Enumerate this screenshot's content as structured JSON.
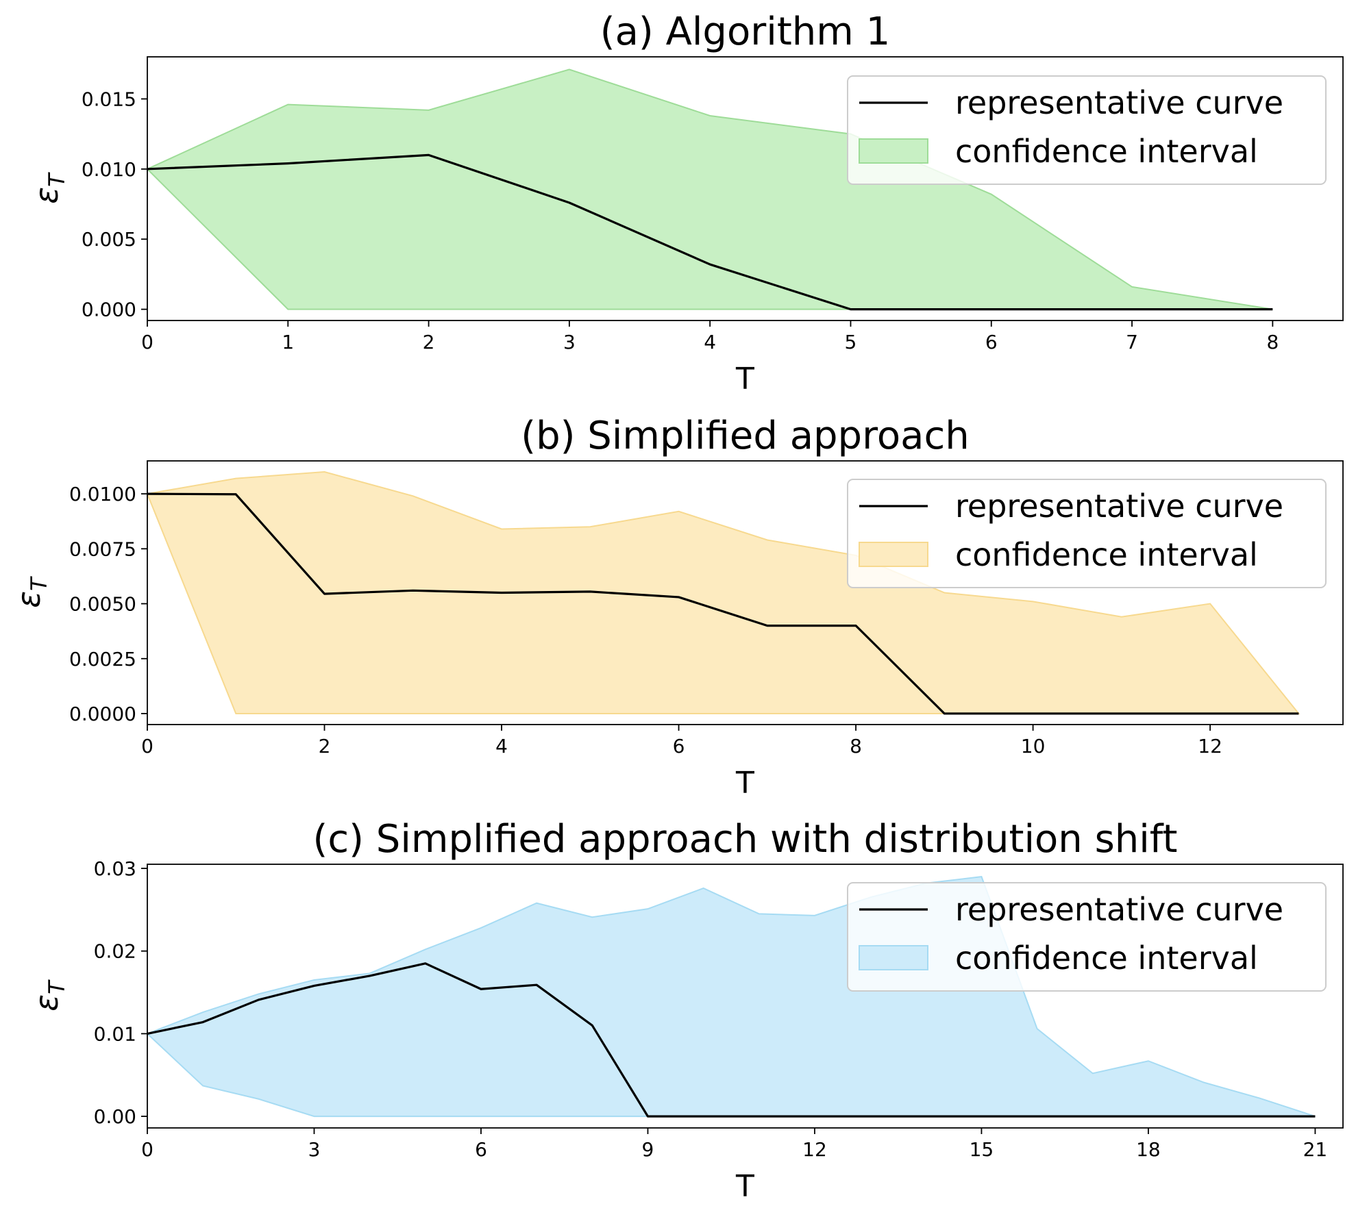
{
  "chart_data": [
    {
      "type": "area",
      "title": "(a) Algorithm 1",
      "xlabel": "T",
      "ylabel": "ε",
      "ylabel_sub": "T",
      "xlim": [
        0,
        8.5
      ],
      "ylim": [
        -0.0008,
        0.018
      ],
      "xticks": [
        0,
        1,
        2,
        3,
        4,
        5,
        6,
        7,
        8
      ],
      "xtick_labels": [
        "0",
        "1",
        "2",
        "3",
        "4",
        "5",
        "6",
        "7",
        "8"
      ],
      "yticks": [
        0,
        0.005,
        0.01,
        0.015
      ],
      "ytick_labels": [
        "0.000",
        "0.005",
        "0.010",
        "0.015"
      ],
      "fill_color": "#c8f0c4",
      "fill_edge_color": "#9edc98",
      "legend": {
        "line_label": "representative curve",
        "fill_label": "confidence interval",
        "position": "upper right"
      },
      "x": [
        0,
        1,
        2,
        3,
        4,
        5,
        6,
        7,
        8
      ],
      "series": [
        {
          "name": "representative curve",
          "values": [
            0.01,
            0.0104,
            0.011,
            0.0076,
            0.0032,
            0,
            0,
            0,
            0
          ]
        }
      ],
      "band": {
        "name": "confidence interval",
        "upper": [
          0.01,
          0.0146,
          0.0142,
          0.0171,
          0.0138,
          0.0125,
          0.0082,
          0.0016,
          0
        ],
        "lower": [
          0.01,
          0,
          0,
          0,
          0,
          0,
          0,
          0,
          0
        ]
      }
    },
    {
      "type": "area",
      "title": "(b) Simplified approach",
      "xlabel": "T",
      "ylabel": "ε",
      "ylabel_sub": "T",
      "xlim": [
        0,
        13.5
      ],
      "ylim": [
        -0.0005,
        0.0115
      ],
      "xticks": [
        0,
        2,
        4,
        6,
        8,
        10,
        12
      ],
      "xtick_labels": [
        "0",
        "2",
        "4",
        "6",
        "8",
        "10",
        "12"
      ],
      "yticks": [
        0,
        0.0025,
        0.005,
        0.0075,
        0.01
      ],
      "ytick_labels": [
        "0.0000",
        "0.0025",
        "0.0050",
        "0.0075",
        "0.0100"
      ],
      "fill_color": "#fdebc0",
      "fill_edge_color": "#f7d98f",
      "legend": {
        "line_label": "representative curve",
        "fill_label": "confidence interval",
        "position": "upper right"
      },
      "x": [
        0,
        1,
        2,
        3,
        4,
        5,
        6,
        7,
        8,
        9,
        10,
        11,
        12,
        13
      ],
      "series": [
        {
          "name": "representative curve",
          "values": [
            0.01,
            0.00998,
            0.00545,
            0.0056,
            0.0055,
            0.00555,
            0.0053,
            0.004,
            0.004,
            0,
            0,
            0,
            0,
            0
          ]
        }
      ],
      "band": {
        "name": "confidence interval",
        "upper": [
          0.01,
          0.0107,
          0.011,
          0.0099,
          0.0084,
          0.0085,
          0.0092,
          0.0079,
          0.0072,
          0.0055,
          0.0051,
          0.0044,
          0.005,
          0
        ],
        "lower": [
          0.01,
          0,
          0,
          0,
          0,
          0,
          0,
          0,
          0,
          0,
          0,
          0,
          0,
          0
        ]
      }
    },
    {
      "type": "area",
      "title": "(c) Simplified approach with distribution shift",
      "xlabel": "T",
      "ylabel": "ε",
      "ylabel_sub": "T",
      "xlim": [
        0,
        21.5
      ],
      "ylim": [
        -0.0014,
        0.0305
      ],
      "xticks": [
        0,
        3,
        6,
        9,
        12,
        15,
        18,
        21
      ],
      "xtick_labels": [
        "0",
        "3",
        "6",
        "9",
        "12",
        "15",
        "18",
        "21"
      ],
      "yticks": [
        0,
        0.01,
        0.02,
        0.03
      ],
      "ytick_labels": [
        "0.00",
        "0.01",
        "0.02",
        "0.03"
      ],
      "fill_color": "#cdebfa",
      "fill_edge_color": "#a6dbf3",
      "legend": {
        "line_label": "representative curve",
        "fill_label": "confidence interval",
        "position": "upper right"
      },
      "x": [
        0,
        1,
        2,
        3,
        4,
        5,
        6,
        7,
        8,
        9,
        10,
        11,
        12,
        13,
        14,
        15,
        16,
        17,
        18,
        19,
        20,
        21
      ],
      "series": [
        {
          "name": "representative curve",
          "values": [
            0.01,
            0.0114,
            0.0141,
            0.0158,
            0.017,
            0.0185,
            0.0154,
            0.0159,
            0.011,
            0,
            0,
            0,
            0,
            0,
            0,
            0,
            0,
            0,
            0,
            0,
            0,
            0
          ]
        }
      ],
      "band": {
        "name": "confidence interval",
        "upper": [
          0.01,
          0.0126,
          0.0148,
          0.0165,
          0.0173,
          0.0202,
          0.0228,
          0.0258,
          0.0241,
          0.0251,
          0.0276,
          0.0245,
          0.0243,
          0.0265,
          0.0282,
          0.029,
          0.0106,
          0.0052,
          0.0067,
          0.0041,
          0.0022,
          0
        ],
        "lower": [
          0.01,
          0.0037,
          0.0021,
          0,
          0,
          0,
          0,
          0,
          0,
          0,
          0,
          0,
          0,
          0,
          0,
          0,
          0,
          0,
          0,
          0,
          0,
          0
        ]
      }
    }
  ]
}
